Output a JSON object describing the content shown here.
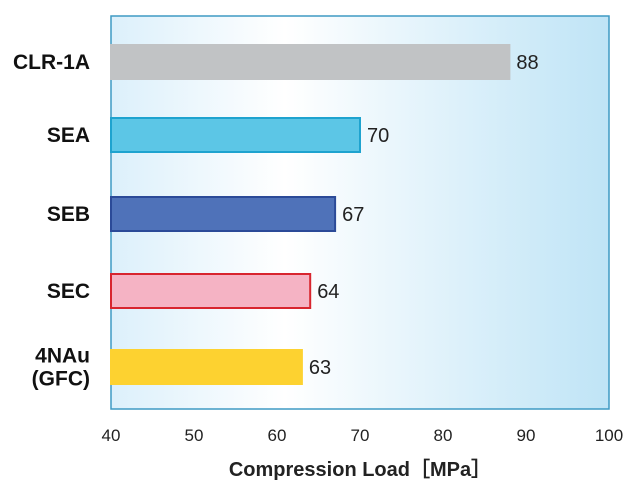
{
  "chart_data": {
    "type": "bar",
    "orientation": "horizontal",
    "categories": [
      [
        "CLR-1A"
      ],
      [
        "SEA"
      ],
      [
        "SEB"
      ],
      [
        "SEC"
      ],
      [
        "4NAu",
        "(GFC)"
      ]
    ],
    "values": [
      88,
      70,
      67,
      64,
      63
    ],
    "bar_fill_colors": [
      "#c1c3c5",
      "#5cc6e6",
      "#4f72b9",
      "#f5b3c4",
      "#fdd230"
    ],
    "bar_stroke_colors": [
      "#c1c3c5",
      "#1ea3cf",
      "#2b4a98",
      "#d8252f",
      "#fdd230"
    ],
    "xlabel": "Compression Load［MPa］",
    "ylabel": "",
    "title": "",
    "xlim": [
      40,
      100
    ],
    "xticks": [
      40,
      50,
      60,
      70,
      80,
      90,
      100
    ],
    "grid": false,
    "legend": "none",
    "plot_background": {
      "gradient_left": "#dcf0fb",
      "gradient_mid": "#ffffff",
      "gradient_right": "#bfe4f6",
      "border": "#3e9ac4"
    }
  }
}
